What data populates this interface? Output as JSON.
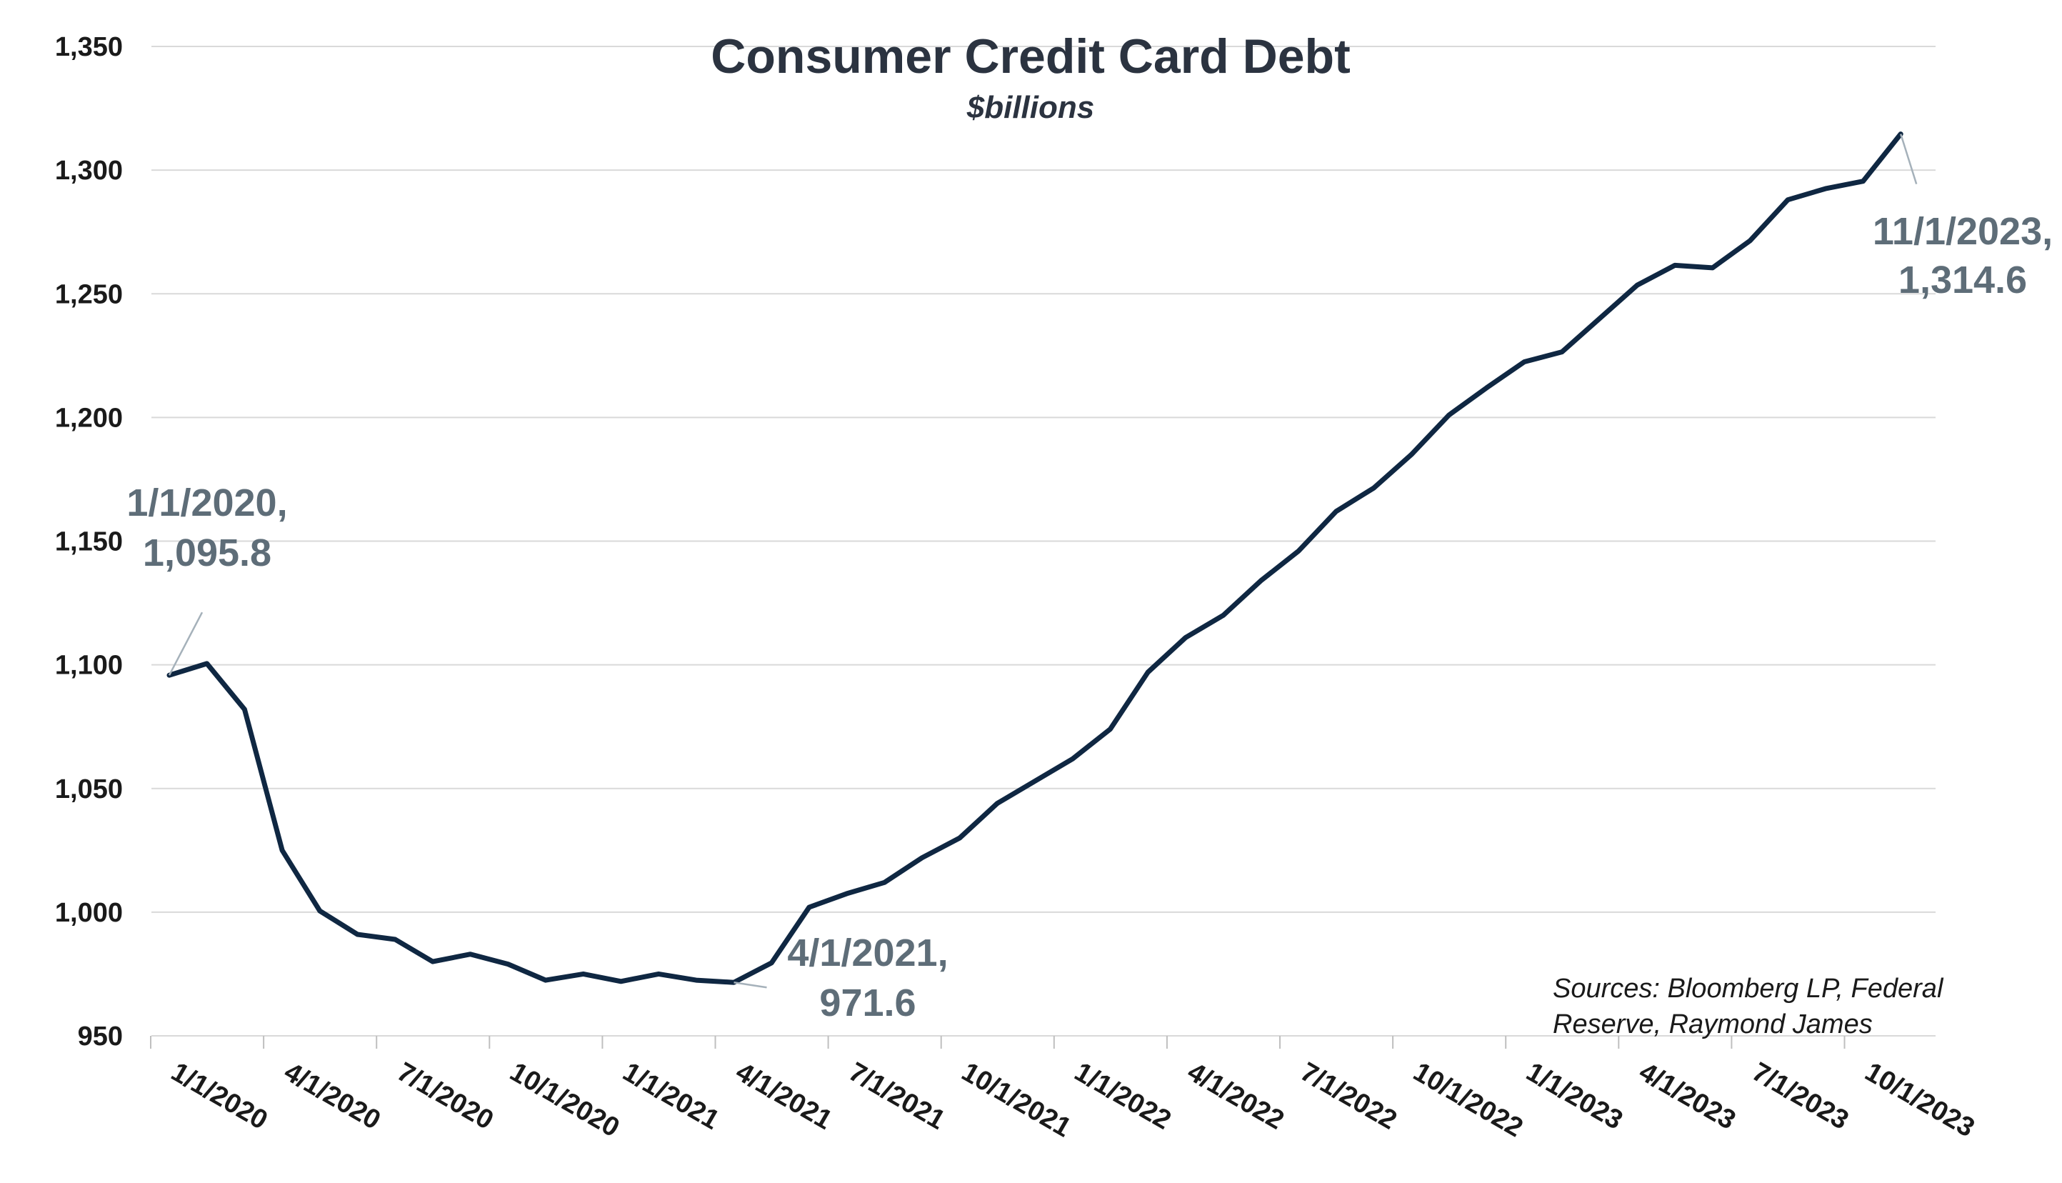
{
  "chart_data": {
    "type": "line",
    "title": "Consumer Credit Card Debt",
    "subtitle": "$billions",
    "xlabel": "",
    "ylabel": "",
    "ylim": [
      950,
      1350
    ],
    "yticks": [
      "950",
      "1,000",
      "1,050",
      "1,100",
      "1,150",
      "1,200",
      "1,250",
      "1,300",
      "1,350"
    ],
    "ytick_values": [
      950,
      1000,
      1050,
      1100,
      1150,
      1200,
      1250,
      1300,
      1350
    ],
    "xtick_labels": [
      "1/1/2020",
      "4/1/2020",
      "7/1/2020",
      "10/1/2020",
      "1/1/2021",
      "4/1/2021",
      "7/1/2021",
      "10/1/2021",
      "1/1/2022",
      "4/1/2022",
      "7/1/2022",
      "10/1/2022",
      "1/1/2023",
      "4/1/2023",
      "7/1/2023",
      "10/1/2023"
    ],
    "x": [
      "1/1/2020",
      "2/1/2020",
      "3/1/2020",
      "4/1/2020",
      "5/1/2020",
      "6/1/2020",
      "7/1/2020",
      "8/1/2020",
      "9/1/2020",
      "10/1/2020",
      "11/1/2020",
      "12/1/2020",
      "1/1/2021",
      "2/1/2021",
      "3/1/2021",
      "4/1/2021",
      "5/1/2021",
      "6/1/2021",
      "7/1/2021",
      "8/1/2021",
      "9/1/2021",
      "10/1/2021",
      "11/1/2021",
      "12/1/2021",
      "1/1/2022",
      "2/1/2022",
      "3/1/2022",
      "4/1/2022",
      "5/1/2022",
      "6/1/2022",
      "7/1/2022",
      "8/1/2022",
      "9/1/2022",
      "10/1/2022",
      "11/1/2022",
      "12/1/2022",
      "1/1/2023",
      "2/1/2023",
      "3/1/2023",
      "4/1/2023",
      "5/1/2023",
      "6/1/2023",
      "7/1/2023",
      "8/1/2023",
      "9/1/2023",
      "10/1/2023",
      "11/1/2023"
    ],
    "series": [
      {
        "values": [
          1095.8,
          1100.5,
          1082,
          1025,
          1000.5,
          991,
          989,
          980,
          983,
          979,
          972.5,
          975,
          972,
          975,
          972.5,
          971.6,
          979.5,
          1002,
          1007.5,
          1012,
          1022,
          1030,
          1044,
          1053,
          1062,
          1074,
          1097,
          1111,
          1120,
          1134,
          1146,
          1162,
          1171.5,
          1185,
          1201,
          1212,
          1222.5,
          1226.5,
          1240,
          1253.5,
          1261.5,
          1260.5,
          1271.5,
          1288,
          1292.5,
          1295.5,
          1314.6
        ],
        "color": "#0f2742"
      }
    ],
    "annotations": [
      {
        "line1": "1/1/2020,",
        "line2": "1,095.8",
        "x": "1/1/2020",
        "y": 1095.8
      },
      {
        "line1": "4/1/2021,",
        "line2": "971.6",
        "x": "4/1/2021",
        "y": 971.6
      },
      {
        "line1": "11/1/2023,",
        "line2": "1,314.6",
        "x": "11/1/2023",
        "y": 1314.6
      }
    ],
    "source_line1": "Sources: Bloomberg LP, Federal",
    "source_line2": "Reserve, Raymond James",
    "grid": true,
    "gridline_color": "#d9d9d9",
    "annotation_color": "#5e6d78"
  }
}
